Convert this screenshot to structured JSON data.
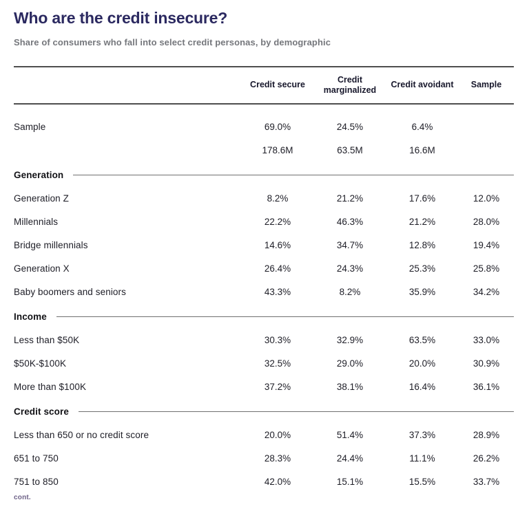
{
  "header": {
    "title": "Who are the credit insecure?",
    "subtitle": "Share of consumers who fall into select credit personas, by demographic"
  },
  "table": {
    "columns": [
      "Credit secure",
      "Credit marginalized",
      "Credit avoidant",
      "Sample"
    ],
    "sample_rows": [
      {
        "label": "Sample",
        "values": [
          "69.0%",
          "24.5%",
          "6.4%",
          ""
        ]
      },
      {
        "label": "",
        "values": [
          "178.6M",
          "63.5M",
          "16.6M",
          ""
        ]
      }
    ],
    "sections": [
      {
        "title": "Generation",
        "rows": [
          {
            "label": "Generation Z",
            "values": [
              "8.2%",
              "21.2%",
              "17.6%",
              "12.0%"
            ]
          },
          {
            "label": "Millennials",
            "values": [
              "22.2%",
              "46.3%",
              "21.2%",
              "28.0%"
            ]
          },
          {
            "label": "Bridge millennials",
            "values": [
              "14.6%",
              "34.7%",
              "12.8%",
              "19.4%"
            ]
          },
          {
            "label": "Generation X",
            "values": [
              "26.4%",
              "24.3%",
              "25.3%",
              "25.8%"
            ]
          },
          {
            "label": "Baby boomers and seniors",
            "values": [
              "43.3%",
              "8.2%",
              "35.9%",
              "34.2%"
            ]
          }
        ]
      },
      {
        "title": "Income",
        "rows": [
          {
            "label": "Less than $50K",
            "values": [
              "30.3%",
              "32.9%",
              "63.5%",
              "33.0%"
            ]
          },
          {
            "label": "$50K-$100K",
            "values": [
              "32.5%",
              "29.0%",
              "20.0%",
              "30.9%"
            ]
          },
          {
            "label": "More than $100K",
            "values": [
              "37.2%",
              "38.1%",
              "16.4%",
              "36.1%"
            ]
          }
        ]
      },
      {
        "title": "Credit score",
        "rows": [
          {
            "label": "Less than 650 or no credit score",
            "values": [
              "20.0%",
              "51.4%",
              "37.3%",
              "28.9%"
            ]
          },
          {
            "label": "651 to 750",
            "values": [
              "28.3%",
              "24.4%",
              "11.1%",
              "26.2%"
            ]
          },
          {
            "label": "751 to 850",
            "values": [
              "42.0%",
              "15.1%",
              "15.5%",
              "33.7%"
            ]
          }
        ]
      }
    ]
  },
  "footer": {
    "note": "cont."
  },
  "colors": {
    "title": "#2b2960",
    "subtitle": "#75777c",
    "header_text": "#17172b",
    "body_text": "#1d1d26",
    "rule": "#4d4d4d",
    "section_line": "#6f6f6f",
    "accent_purple": "#6e6288"
  },
  "chart_data": {
    "type": "table",
    "title": "Who are the credit insecure?",
    "subtitle": "Share of consumers who fall into select credit personas, by demographic",
    "columns": [
      "",
      "Credit secure",
      "Credit marginalized",
      "Credit avoidant",
      "Sample"
    ],
    "rows": [
      [
        "Sample",
        "69.0%",
        "24.5%",
        "6.4%",
        ""
      ],
      [
        "",
        "178.6M",
        "63.5M",
        "16.6M",
        ""
      ],
      [
        "Generation Z",
        "8.2%",
        "21.2%",
        "17.6%",
        "12.0%"
      ],
      [
        "Millennials",
        "22.2%",
        "46.3%",
        "21.2%",
        "28.0%"
      ],
      [
        "Bridge millennials",
        "14.6%",
        "34.7%",
        "12.8%",
        "19.4%"
      ],
      [
        "Generation X",
        "26.4%",
        "24.3%",
        "25.3%",
        "25.8%"
      ],
      [
        "Baby boomers and seniors",
        "43.3%",
        "8.2%",
        "35.9%",
        "34.2%"
      ],
      [
        "Less than $50K",
        "30.3%",
        "32.9%",
        "63.5%",
        "33.0%"
      ],
      [
        "$50K-$100K",
        "32.5%",
        "29.0%",
        "20.0%",
        "30.9%"
      ],
      [
        "More than $100K",
        "37.2%",
        "38.1%",
        "16.4%",
        "36.1%"
      ],
      [
        "Less than 650 or no credit score",
        "20.0%",
        "51.4%",
        "37.3%",
        "28.9%"
      ],
      [
        "651 to 750",
        "28.3%",
        "24.4%",
        "11.1%",
        "26.2%"
      ],
      [
        "751 to 850",
        "42.0%",
        "15.1%",
        "15.5%",
        "33.7%"
      ]
    ],
    "section_groups": [
      "Generation",
      "Income",
      "Credit score"
    ],
    "layout_hints": {
      "grid": "off",
      "header_rules": true,
      "section_dividers": true
    }
  }
}
